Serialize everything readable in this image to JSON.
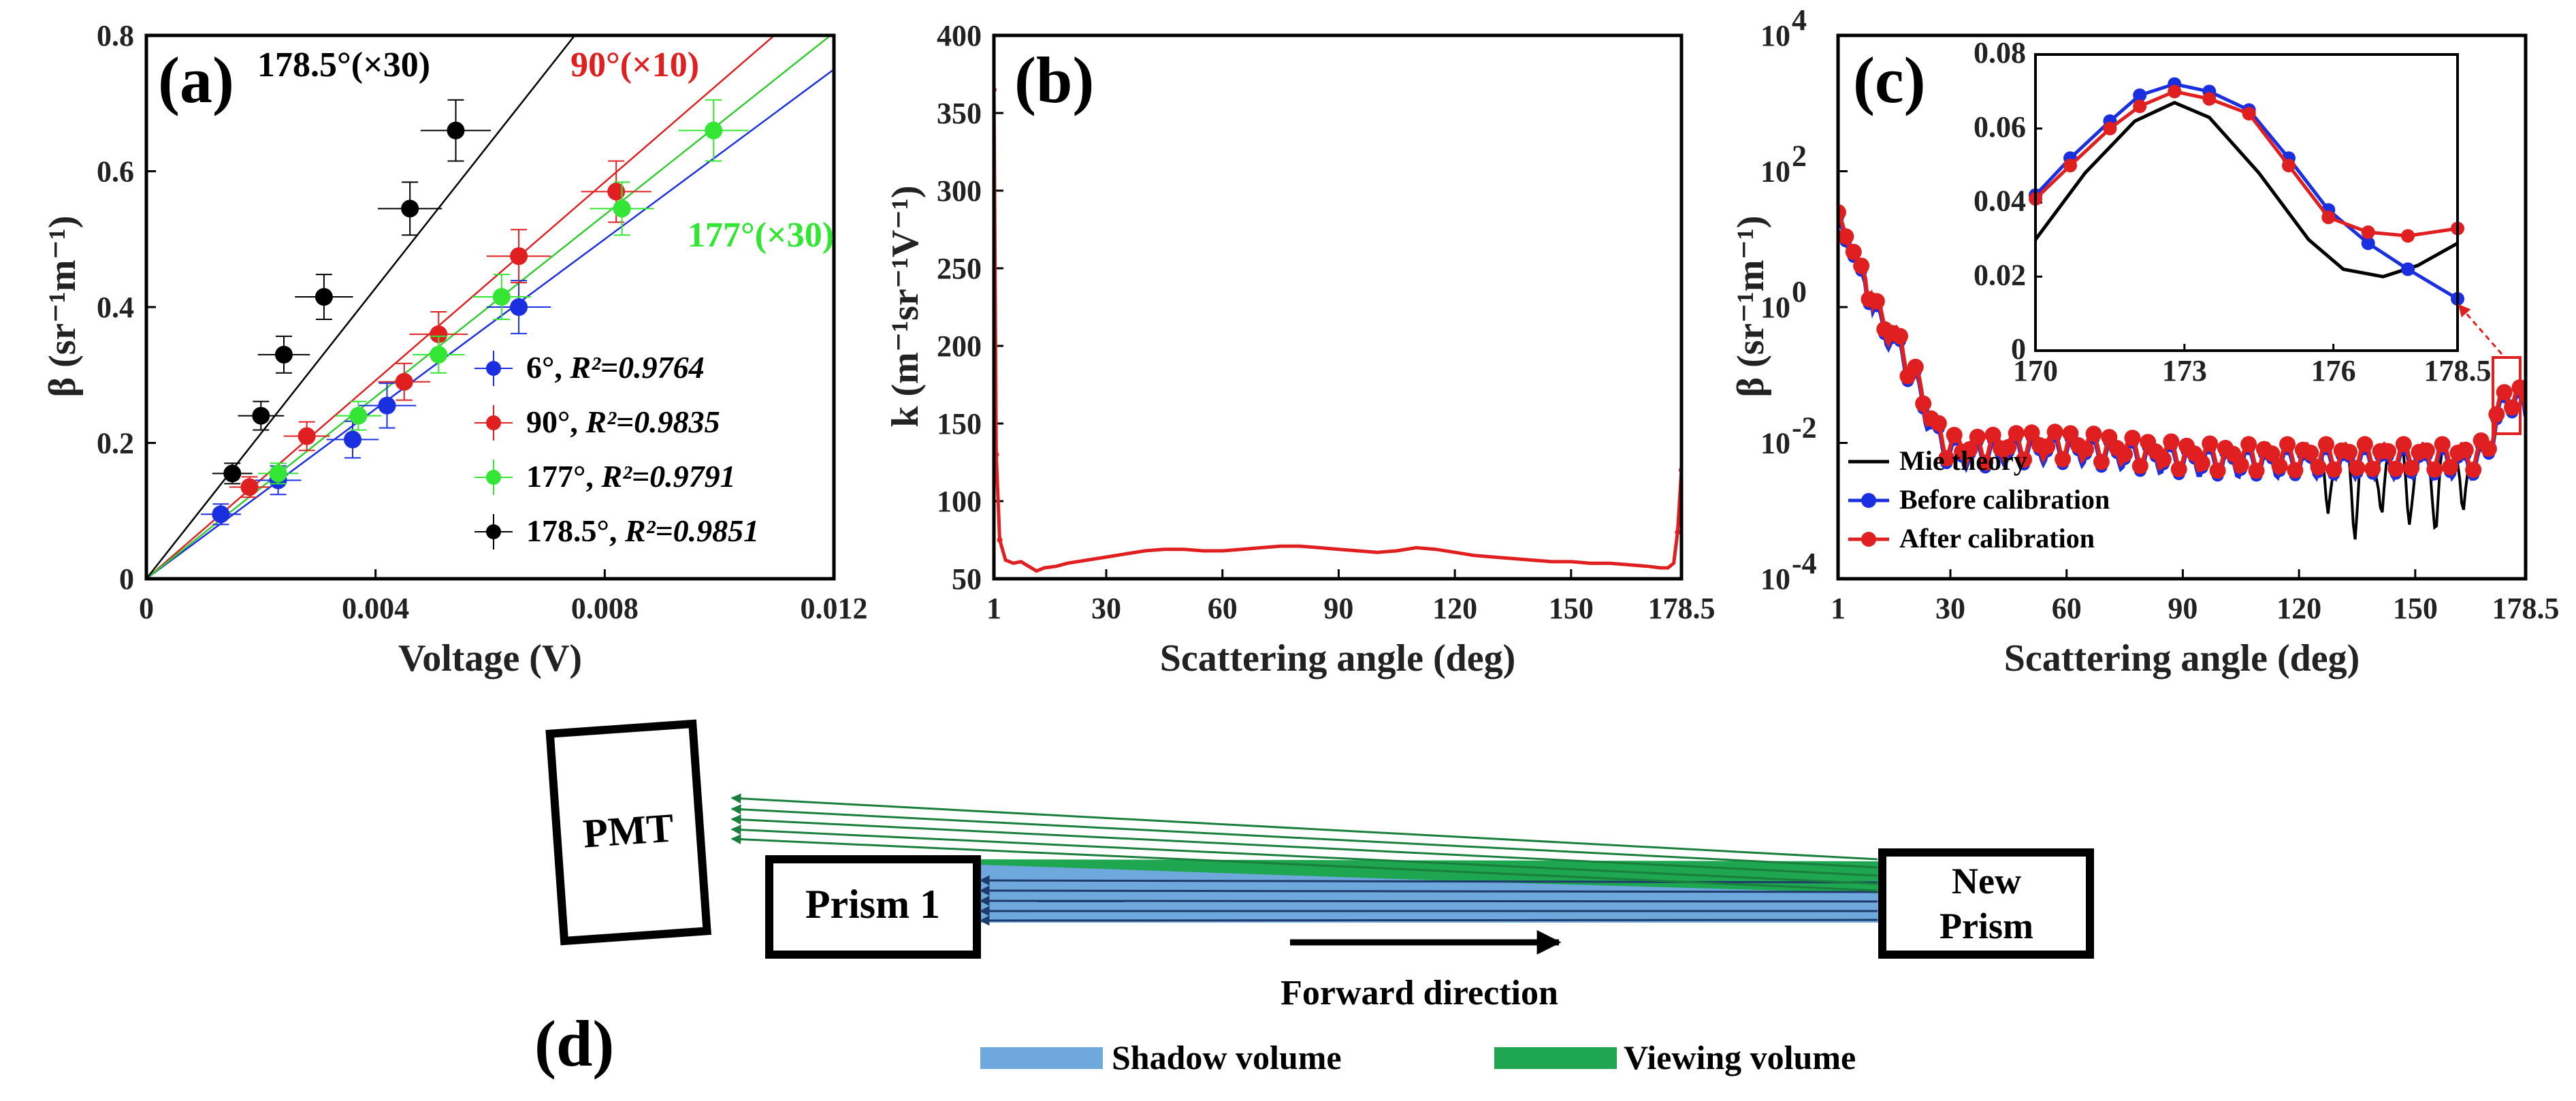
{
  "chart_data": [
    {
      "id": "a",
      "type": "scatter",
      "panel_label": "(a)",
      "xlabel": "Voltage (V)",
      "ylabel": "β (sr⁻¹m⁻¹)",
      "xlim": [
        0,
        0.012
      ],
      "ylim": [
        0,
        0.8
      ],
      "xticks": [
        "0",
        "0.004",
        "0.008",
        "0.012"
      ],
      "yticks": [
        "0",
        "0.2",
        "0.4",
        "0.6",
        "0.8"
      ],
      "series": [
        {
          "name": "6°",
          "r2_label": "R²=0.9764",
          "color": "#1a2fe0",
          "slope": 62.5,
          "x": [
            0.0013,
            0.0023,
            0.0036,
            0.0042,
            0.0065
          ],
          "y": [
            0.095,
            0.145,
            0.205,
            0.255,
            0.4
          ]
        },
        {
          "name": "90°",
          "r2_label": "R²=0.9835",
          "color": "#e02020",
          "slope": 73.0,
          "x": [
            0.0018,
            0.0028,
            0.0045,
            0.0051,
            0.0065,
            0.0082
          ],
          "y": [
            0.135,
            0.21,
            0.29,
            0.36,
            0.475,
            0.57
          ]
        },
        {
          "name": "177°",
          "r2_label": "R²=0.9791",
          "color": "#33e633",
          "slope": 67.0,
          "x": [
            0.0023,
            0.0037,
            0.0051,
            0.0062,
            0.0083,
            0.0099
          ],
          "y": [
            0.155,
            0.24,
            0.33,
            0.415,
            0.545,
            0.66
          ]
        },
        {
          "name": "178.5°",
          "r2_label": "R²=0.9851",
          "color": "#000000",
          "slope": 107.0,
          "x": [
            0.0015,
            0.002,
            0.0024,
            0.0031,
            0.0046,
            0.0054
          ],
          "y": [
            0.155,
            0.24,
            0.33,
            0.415,
            0.545,
            0.66
          ]
        }
      ],
      "annotations": [
        {
          "text": "178.5°(×30)",
          "color": "#000000"
        },
        {
          "text": "90°(×10)",
          "color": "#e02020"
        },
        {
          "text": "177°(×30)",
          "color": "#33e633"
        }
      ]
    },
    {
      "id": "b",
      "type": "line",
      "panel_label": "(b)",
      "xlabel": "Scattering angle (deg)",
      "ylabel": "k (m⁻¹sr⁻¹V⁻¹)",
      "xlim": [
        1,
        178.5
      ],
      "ylim": [
        50,
        400
      ],
      "xticks": [
        "1",
        "30",
        "60",
        "90",
        "120",
        "150",
        "178.5"
      ],
      "yticks": [
        "50",
        "100",
        "150",
        "200",
        "250",
        "300",
        "350",
        "400"
      ],
      "series": [
        {
          "name": "k",
          "color": "#e02020",
          "x": [
            1,
            1.6,
            2.5,
            4,
            6,
            8,
            10,
            12,
            14,
            17,
            20,
            25,
            30,
            35,
            40,
            45,
            50,
            55,
            60,
            65,
            70,
            75,
            80,
            85,
            90,
            95,
            100,
            105,
            110,
            115,
            120,
            125,
            130,
            135,
            140,
            145,
            150,
            155,
            160,
            165,
            170,
            173,
            175,
            176.5,
            177.5,
            178.5
          ],
          "y": [
            365,
            130,
            75,
            62,
            60,
            61,
            58,
            55,
            57,
            58,
            60,
            62,
            64,
            66,
            68,
            69,
            69,
            68,
            68,
            69,
            70,
            71,
            71,
            70,
            69,
            68,
            67,
            68,
            70,
            69,
            67,
            65,
            64,
            63,
            62,
            61,
            61,
            60,
            60,
            59,
            58,
            57,
            57,
            60,
            80,
            120
          ]
        }
      ]
    },
    {
      "id": "c",
      "type": "line",
      "panel_label": "(c)",
      "xlabel": "Scattering angle (deg)",
      "ylabel": "β (sr⁻¹m⁻¹)",
      "yscale": "log",
      "xlim": [
        1,
        178.5
      ],
      "ylim_exp": [
        -4,
        4
      ],
      "xticks": [
        "1",
        "30",
        "60",
        "90",
        "120",
        "150",
        "178.5"
      ],
      "ytick_base": "10",
      "ytick_exps": [
        "-4",
        "-2",
        "0",
        "2",
        "4"
      ],
      "legend": {
        "position": "bottom-left",
        "entries": [
          "Mie theory",
          "Before calibration",
          "After calibration"
        ]
      },
      "series": [
        {
          "name": "Mie theory",
          "color": "#000000"
        },
        {
          "name": "Before calibration",
          "color": "#1a2fe0"
        },
        {
          "name": "After calibration",
          "color": "#e02020"
        }
      ],
      "inset": {
        "xlim": [
          170,
          178.5
        ],
        "ylim": [
          0,
          0.08
        ],
        "xticks": [
          "170",
          "173",
          "176",
          "178.5"
        ],
        "yticks": [
          "0",
          "0.02",
          "0.04",
          "0.06",
          "0.08"
        ],
        "series": [
          {
            "name": "Mie theory",
            "color": "#000000",
            "x": [
              170,
              171,
              172,
              172.8,
              173.5,
              174.5,
              175.5,
              176.2,
              177,
              177.7,
              178.5
            ],
            "y": [
              0.03,
              0.048,
              0.062,
              0.067,
              0.063,
              0.048,
              0.03,
              0.022,
              0.02,
              0.023,
              0.029
            ]
          },
          {
            "name": "Before calibration",
            "color": "#1a2fe0",
            "x": [
              170,
              170.7,
              171.5,
              172.1,
              172.8,
              173.5,
              174.3,
              175.1,
              175.9,
              176.7,
              177.5,
              178.5
            ],
            "y": [
              0.042,
              0.052,
              0.062,
              0.069,
              0.072,
              0.07,
              0.065,
              0.052,
              0.038,
              0.029,
              0.022,
              0.014
            ]
          },
          {
            "name": "After calibration",
            "color": "#e02020",
            "x": [
              170,
              170.7,
              171.5,
              172.1,
              172.8,
              173.5,
              174.3,
              175.1,
              175.9,
              176.7,
              177.5,
              178.5
            ],
            "y": [
              0.041,
              0.05,
              0.06,
              0.066,
              0.07,
              0.068,
              0.064,
              0.05,
              0.036,
              0.032,
              0.031,
              0.033
            ]
          }
        ]
      }
    }
  ],
  "diagram": {
    "panel_label": "(d)",
    "pmt_label": "PMT",
    "prism1_label": "Prism 1",
    "new_prism_label": [
      "New",
      "Prism"
    ],
    "direction_label": "Forward direction",
    "legend": [
      {
        "label": "Shadow volume",
        "color": "#6fa8dc"
      },
      {
        "label": "Viewing volume",
        "color": "#1ea650"
      }
    ],
    "arrow_color": "#1f3b6b",
    "view_line_color": "#1a7f3c"
  }
}
